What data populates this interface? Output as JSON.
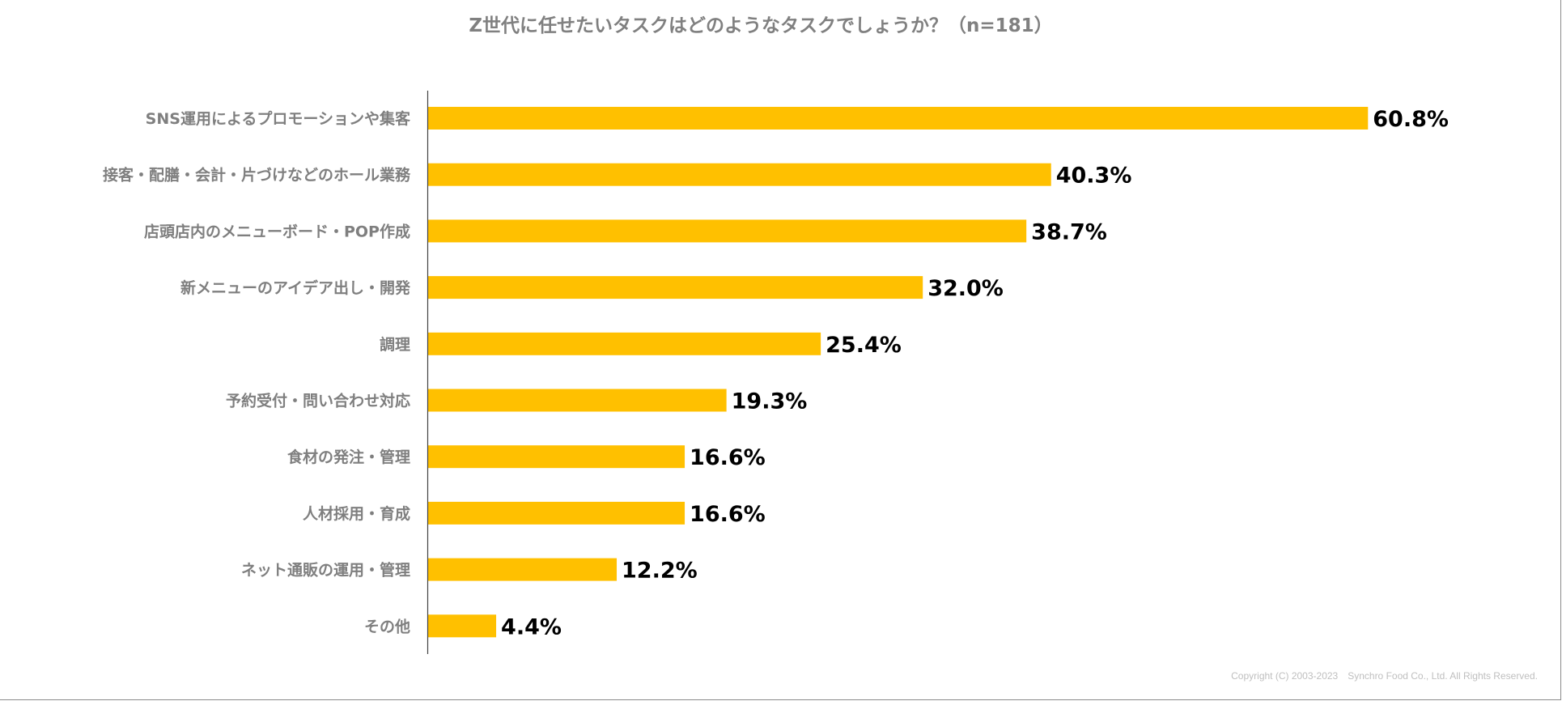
{
  "chart_data": {
    "type": "bar",
    "orientation": "horizontal",
    "title": "Z世代に任せたいタスクはどのようなタスクでしょうか？（n=181）",
    "categories": [
      "SNS運用によるプロモーションや集客",
      "接客・配膳・会計・片づけなどのホール業務",
      "店頭店内のメニューボード・POP作成",
      "新メニューのアイデア出し・開発",
      "調理",
      "予約受付・問い合わせ対応",
      "食材の発注・管理",
      "人材採用・育成",
      "ネット通販の運用・管理",
      "その他"
    ],
    "values": [
      60.8,
      40.3,
      38.7,
      32.0,
      25.4,
      19.3,
      16.6,
      16.6,
      12.2,
      4.4
    ],
    "value_labels": [
      "60.8%",
      "40.3%",
      "38.7%",
      "32.0%",
      "25.4%",
      "19.3%",
      "16.6%",
      "16.6%",
      "12.2%",
      "4.4%"
    ],
    "xlim": [
      0,
      70
    ],
    "grid": false,
    "legend": "none",
    "bar_color": "#FFC000"
  },
  "footer": {
    "copyright": "Copyright (C) 2003-2023　Synchro Food Co., Ltd. All Rights Reserved."
  }
}
